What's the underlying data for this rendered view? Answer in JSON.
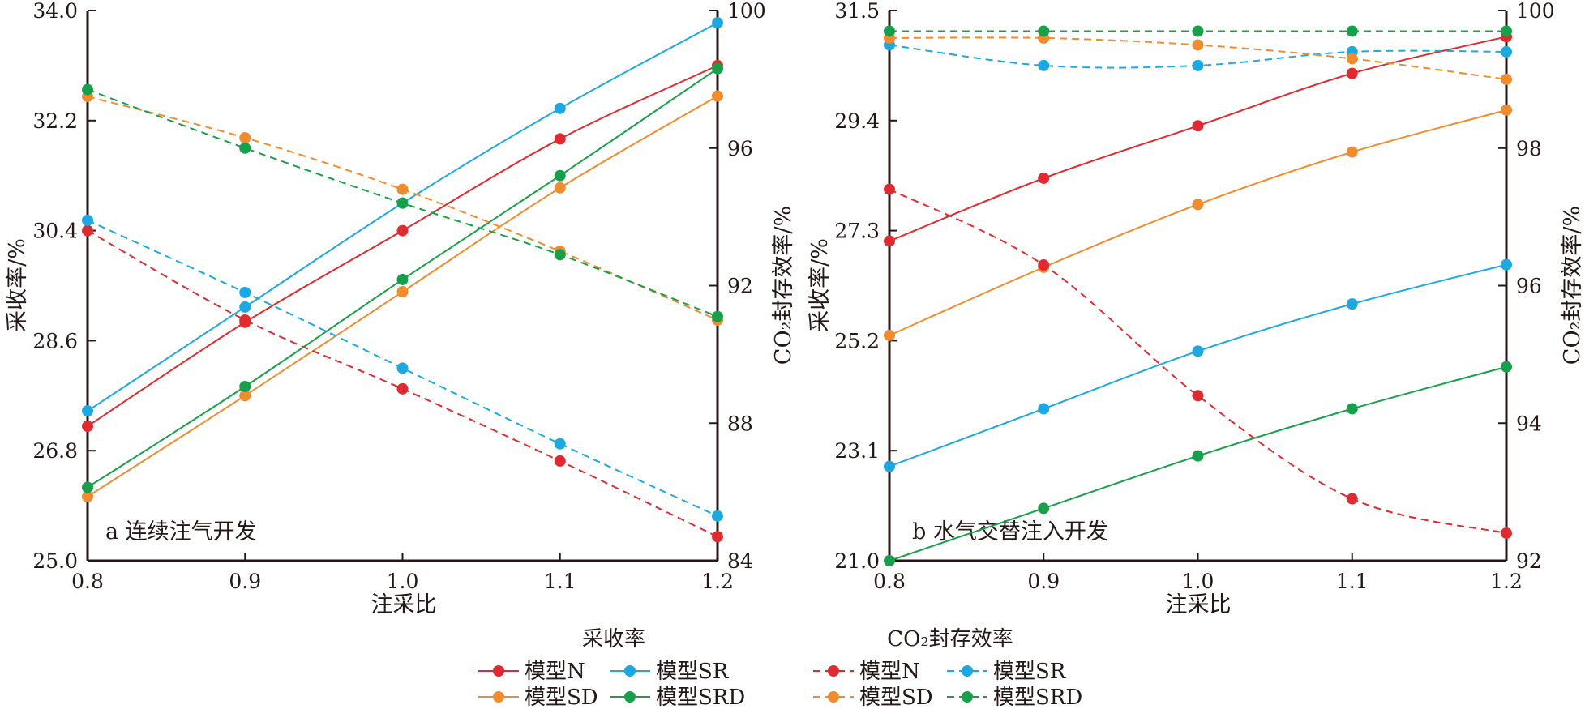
{
  "chart_data": [
    {
      "panel": "a",
      "type": "line",
      "annotation": "a 连续注气开发",
      "xlabel": "注采比",
      "ylabel_left": "采收率/%",
      "ylabel_right": "CO₂封存效率/%",
      "x": [
        0.8,
        0.9,
        1.0,
        1.1,
        1.2
      ],
      "xticks": [
        "0.8",
        "0.9",
        "1.0",
        "1.1",
        "1.2"
      ],
      "xlim": [
        0.8,
        1.2
      ],
      "ylim_left": [
        25.0,
        34.0
      ],
      "yticks_left": [
        "25.0",
        "26.8",
        "28.6",
        "30.4",
        "32.2",
        "34.0"
      ],
      "ylim_right": [
        84,
        100
      ],
      "yticks_right": [
        "84",
        "88",
        "92",
        "96",
        "100"
      ],
      "series": [
        {
          "name": "模型N",
          "group": "采收率",
          "axis": "left",
          "style": "solid",
          "color": "#e02a2f",
          "values": [
            27.2,
            28.9,
            30.4,
            31.9,
            33.1
          ]
        },
        {
          "name": "模型SR",
          "group": "采收率",
          "axis": "left",
          "style": "solid",
          "color": "#1ba9e1",
          "values": [
            27.45,
            29.15,
            30.85,
            32.4,
            33.8
          ]
        },
        {
          "name": "模型SD",
          "group": "采收率",
          "axis": "left",
          "style": "solid",
          "color": "#f08c2c",
          "values": [
            26.05,
            27.7,
            29.4,
            31.1,
            32.6
          ]
        },
        {
          "name": "模型SRD",
          "group": "采收率",
          "axis": "left",
          "style": "solid",
          "color": "#16a04a",
          "values": [
            26.2,
            27.85,
            29.6,
            31.3,
            33.05
          ]
        },
        {
          "name": "模型N",
          "group": "CO₂封存效率",
          "axis": "right",
          "style": "dashed",
          "color": "#e02a2f",
          "values": [
            93.6,
            91.0,
            89.0,
            86.9,
            84.7
          ]
        },
        {
          "name": "模型SR",
          "group": "CO₂封存效率",
          "axis": "right",
          "style": "dashed",
          "color": "#1ba9e1",
          "values": [
            93.9,
            91.8,
            89.6,
            87.4,
            85.3
          ]
        },
        {
          "name": "模型SD",
          "group": "CO₂封存效率",
          "axis": "right",
          "style": "dashed",
          "color": "#f08c2c",
          "values": [
            97.5,
            96.3,
            94.8,
            93.0,
            91.0
          ]
        },
        {
          "name": "模型SRD",
          "group": "CO₂封存效率",
          "axis": "right",
          "style": "dashed",
          "color": "#16a04a",
          "values": [
            97.7,
            96.0,
            94.4,
            92.9,
            91.1
          ]
        }
      ]
    },
    {
      "panel": "b",
      "type": "line",
      "annotation": "b 水气交替注入开发",
      "xlabel": "注采比",
      "ylabel_left": "采收率/%",
      "ylabel_right": "CO₂封存效率/%",
      "x": [
        0.8,
        0.9,
        1.0,
        1.1,
        1.2
      ],
      "xticks": [
        "0.8",
        "0.9",
        "1.0",
        "1.1",
        "1.2"
      ],
      "xlim": [
        0.8,
        1.2
      ],
      "ylim_left": [
        21.0,
        31.5
      ],
      "yticks_left": [
        "21.0",
        "23.1",
        "25.2",
        "27.3",
        "29.4",
        "31.5"
      ],
      "ylim_right": [
        92,
        100
      ],
      "yticks_right": [
        "92",
        "94",
        "96",
        "98",
        "100"
      ],
      "series": [
        {
          "name": "模型N",
          "group": "采收率",
          "axis": "left",
          "style": "solid",
          "color": "#e02a2f",
          "values": [
            27.1,
            28.3,
            29.3,
            30.3,
            31.0
          ]
        },
        {
          "name": "模型SR",
          "group": "采收率",
          "axis": "left",
          "style": "solid",
          "color": "#1ba9e1",
          "values": [
            22.8,
            23.9,
            25.0,
            25.9,
            26.65
          ]
        },
        {
          "name": "模型SD",
          "group": "采收率",
          "axis": "left",
          "style": "solid",
          "color": "#f08c2c",
          "values": [
            25.3,
            26.6,
            27.8,
            28.8,
            29.6
          ]
        },
        {
          "name": "模型SRD",
          "group": "采收率",
          "axis": "left",
          "style": "solid",
          "color": "#16a04a",
          "values": [
            21.0,
            22.0,
            23.0,
            23.9,
            24.7
          ]
        },
        {
          "name": "模型N",
          "group": "CO₂封存效率",
          "axis": "right",
          "style": "dashed",
          "color": "#e02a2f",
          "values": [
            97.4,
            96.3,
            94.4,
            92.9,
            92.4
          ]
        },
        {
          "name": "模型SR",
          "group": "CO₂封存效率",
          "axis": "right",
          "style": "dashed",
          "color": "#1ba9e1",
          "values": [
            99.5,
            99.2,
            99.2,
            99.4,
            99.4
          ]
        },
        {
          "name": "模型SD",
          "group": "CO₂封存效率",
          "axis": "right",
          "style": "dashed",
          "color": "#f08c2c",
          "values": [
            99.6,
            99.6,
            99.5,
            99.3,
            99.0
          ]
        },
        {
          "name": "模型SRD",
          "group": "CO₂封存效率",
          "axis": "right",
          "style": "dashed",
          "color": "#16a04a",
          "values": [
            99.7,
            99.7,
            99.7,
            99.7,
            99.7
          ]
        }
      ]
    }
  ],
  "legend": {
    "title_left": "采收率",
    "title_right": "CO₂封存效率",
    "entries_left": [
      {
        "label": "模型N",
        "color": "#e02a2f",
        "style": "solid"
      },
      {
        "label": "模型SR",
        "color": "#1ba9e1",
        "style": "solid"
      },
      {
        "label": "模型SD",
        "color": "#f08c2c",
        "style": "solid"
      },
      {
        "label": "模型SRD",
        "color": "#16a04a",
        "style": "solid"
      }
    ],
    "entries_right": [
      {
        "label": "模型N",
        "color": "#e02a2f",
        "style": "dashed"
      },
      {
        "label": "模型SR",
        "color": "#1ba9e1",
        "style": "dashed"
      },
      {
        "label": "模型SD",
        "color": "#f08c2c",
        "style": "dashed"
      },
      {
        "label": "模型SRD",
        "color": "#16a04a",
        "style": "dashed"
      }
    ]
  }
}
